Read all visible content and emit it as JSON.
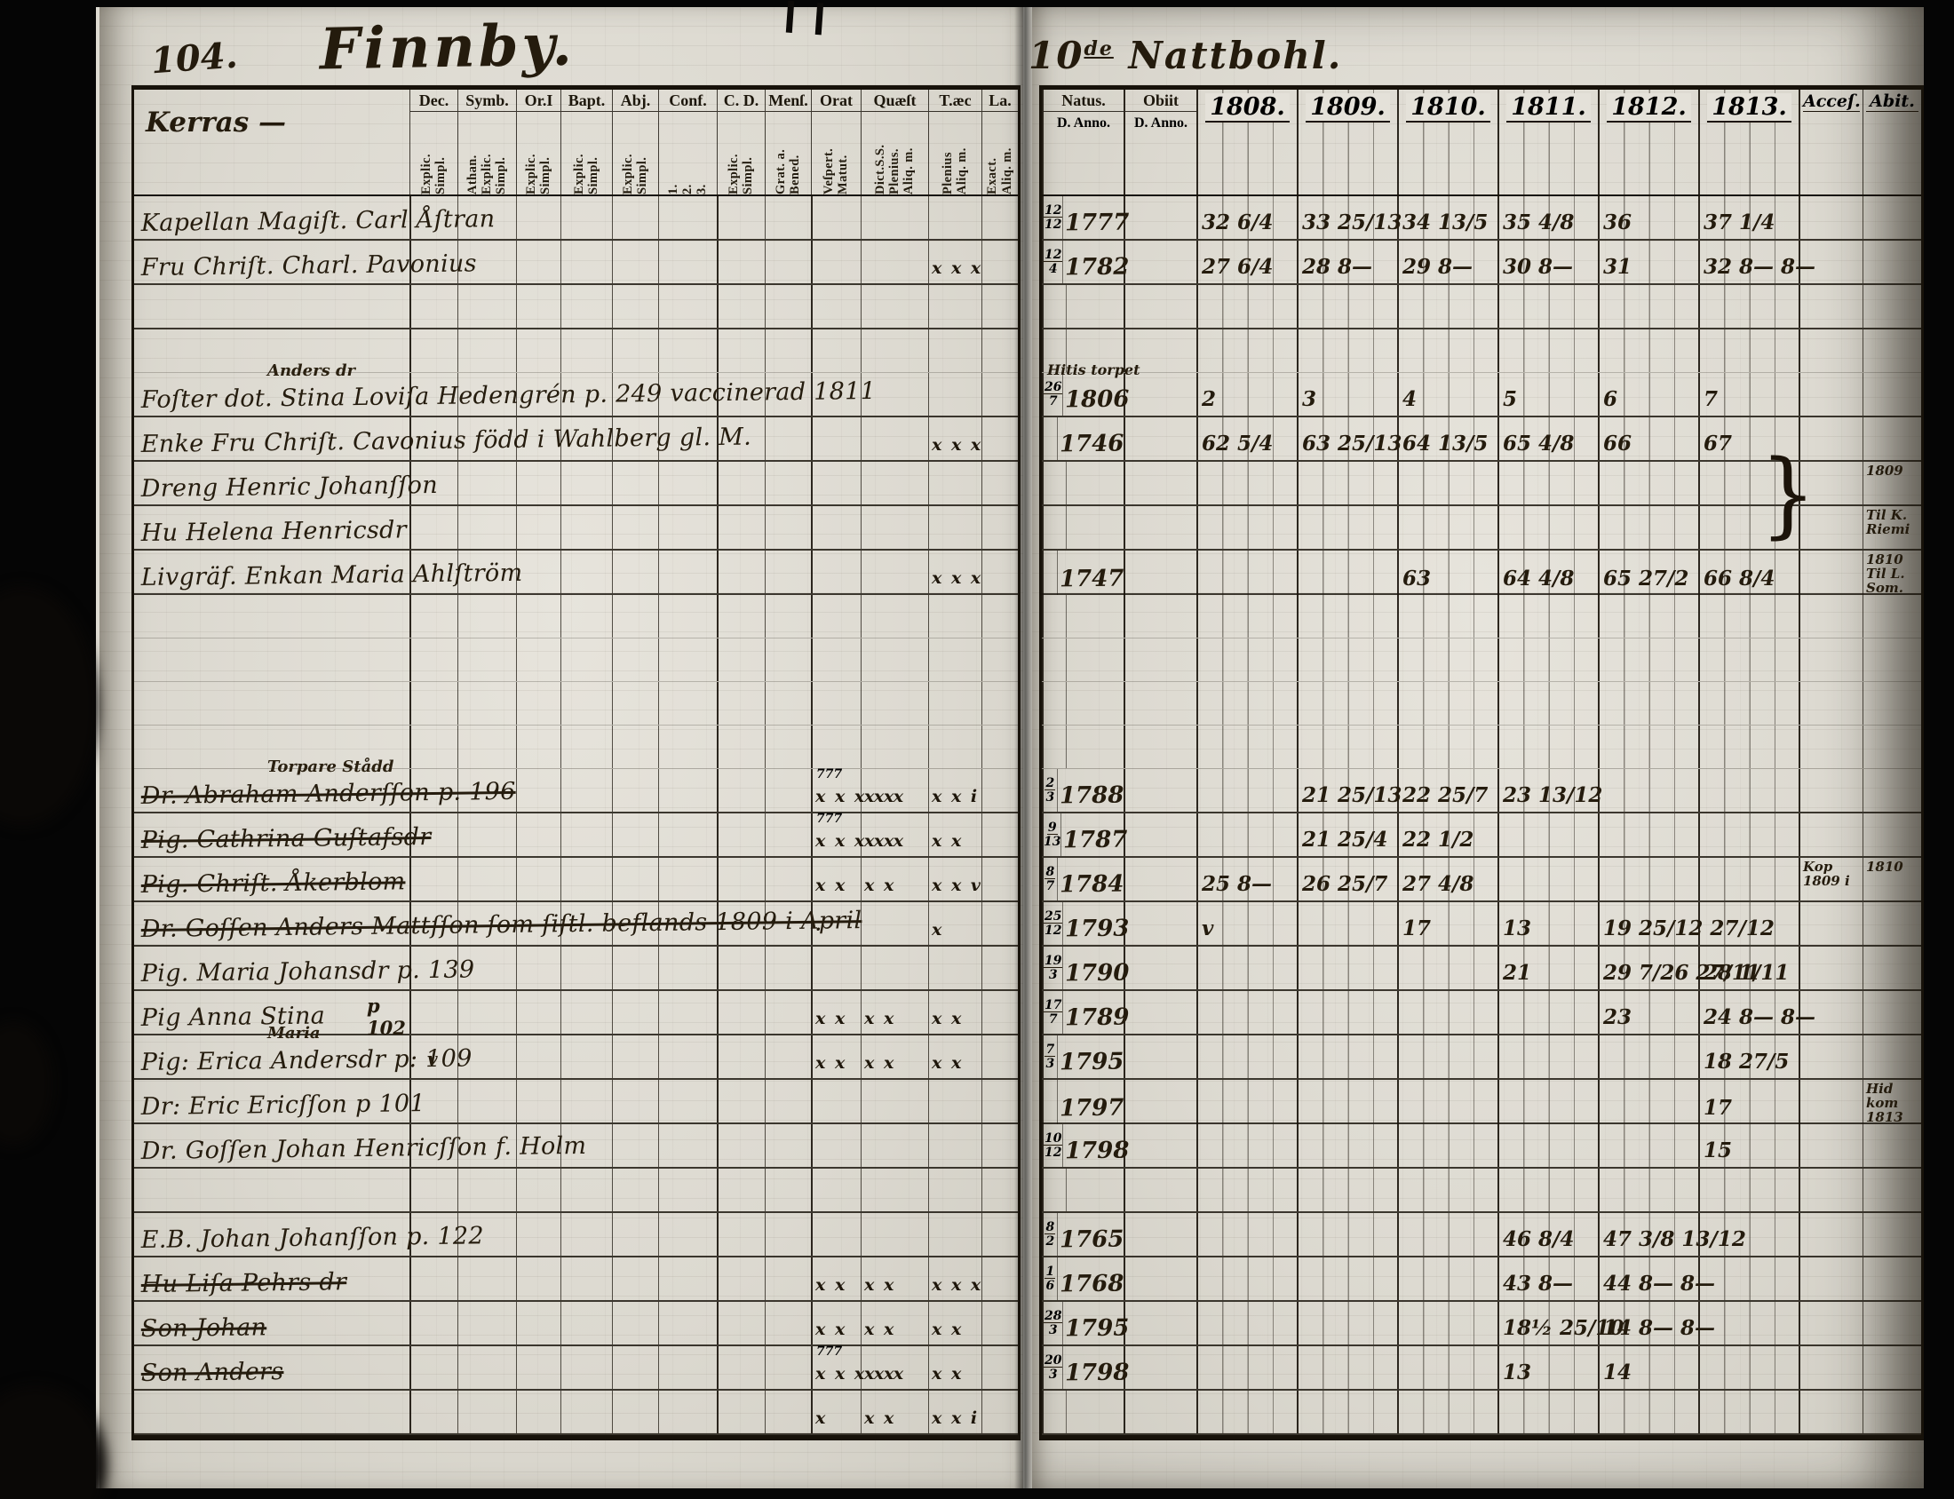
{
  "colors": {
    "ink": "#241b0d",
    "paper": "#dedbd2",
    "line": "#17120a"
  },
  "left_page": {
    "page_number": "104.",
    "title": "Finnby.",
    "section_label": "Kerras —",
    "columns": [
      {
        "label": "Dec.",
        "sub": [
          "Explic.",
          "Simpl."
        ]
      },
      {
        "label": "Symb.",
        "sub": [
          "Athan.",
          "Explic.",
          "Simpl."
        ]
      },
      {
        "label": "Or.I",
        "sub": [
          "Explic.",
          "Simpl."
        ]
      },
      {
        "label": "Bapt.",
        "sub": [
          "Explic.",
          "Simpl."
        ]
      },
      {
        "label": "Abj.",
        "sub": [
          "Explic.",
          "Simpl."
        ]
      },
      {
        "label": "Conf.",
        "sub": [
          "1.",
          "2.",
          "3."
        ]
      },
      {
        "label": "C. D.",
        "sub": [
          "Explic.",
          "Simpl."
        ]
      },
      {
        "label": "Menſ.",
        "sub": [
          "Grat. a.",
          "Bened."
        ]
      },
      {
        "label": "Orat",
        "sub": [
          "Veſpert.",
          "Matut."
        ]
      },
      {
        "label": "Quæſt",
        "sub": [
          "Dict.S.S.",
          "Plenius.",
          "Aliq. m."
        ]
      },
      {
        "label": "T.æc",
        "sub": [
          "Plenius",
          "Aliq. m."
        ]
      },
      {
        "label": "La.",
        "sub": [
          "Exact.",
          "Aliq. m."
        ]
      }
    ]
  },
  "right_page": {
    "title_prefix": "10",
    "title_sup": "de",
    "title_main": "Nattbohl.",
    "natus_label": "Natus.",
    "natus_sub": "D. Anno.",
    "obiit_label": "Obiit",
    "obiit_sub": "D. Anno.",
    "years": [
      "1808.",
      "1809.",
      "1810.",
      "1811.",
      "1812.",
      "1813."
    ],
    "acces_label": "Acceſ.",
    "abit_label": "Abit."
  },
  "rows": [
    {
      "lt": "Kapellan Magiſt. Carl Åſtran",
      "rd": "12/12",
      "ry": "1777",
      "y08": "32 6/4",
      "y09": "33 25/13",
      "y10": "34 13/5",
      "y11": "35 4/8",
      "y12": "36",
      "y13": "37 1/4"
    },
    {
      "lt": "Fru Chriſt. Charl. Pavonius",
      "m3": "x x x",
      "rd": "12/4",
      "ry": "1782",
      "y08": "27 6/4",
      "y09": "28 8—",
      "y10": "29 8—",
      "y11": "30 8—",
      "y12": "31",
      "y13": "32 8— 8—"
    },
    {},
    {
      "b": 1
    },
    {
      "lt": "Foſter dot. Stina Loviſa Hedengrén p. 249 vaccinerad 1811",
      "lsup": "Anders dr",
      "rd": "26/7",
      "ry": "1806",
      "rsup": "Hitis torpet",
      "y08": "2",
      "y09": "3",
      "y10": "4",
      "y11": "5",
      "y12": "6",
      "y13": "7"
    },
    {
      "lt": "Enke Fru Chriſt. Cavonius född i Wahlberg gl. M.",
      "m3": "x x x",
      "ry": "1746",
      "y08": "62 5/4",
      "y09": "63 25/13",
      "y10": "64 13/5",
      "y11": "65 4/8",
      "y12": "66",
      "y13": "67"
    },
    {
      "lt": "Dreng Henric Johanſſon",
      "abt": "1809",
      "brace": 1
    },
    {
      "lt": "Hu Helena Henricsdr",
      "abt": "Til K. Riemi"
    },
    {
      "lt": "Livgräf. Enkan Maria Ahlſtröm",
      "m3": "x x x",
      "ry": "1747",
      "y10": "63",
      "y11": "64 4/8",
      "y12": "65 27/2",
      "y13": "66 8/4",
      "abt": "1810 Til L. Som."
    },
    {
      "b": 1
    },
    {
      "b": 1
    },
    {
      "b": 1
    },
    {
      "b": 1
    },
    {
      "lt": "Dr. Abraham Anderſſon p. 196",
      "lsup": "Torpare Stådd",
      "struck": 1,
      "msup": "777",
      "m1": "x x x x x",
      "m2": "x x",
      "m3": "x x i",
      "rd": "2/3",
      "ry": "1788",
      "y09": "21 25/13",
      "y10": "22 25/7",
      "y11": "23 13/12"
    },
    {
      "lt": "Pig. Cathrina Guſtafsdr",
      "struck": 1,
      "msup": "777",
      "m1": "x x x x x",
      "m2": "x x",
      "m3": "x x",
      "rd": "9/13",
      "ry": "1787",
      "y09": "21 25/4",
      "y10": "22 1/2"
    },
    {
      "lt": "Pig. Chriſt. Åkerblom",
      "struck": 1,
      "m1": "x x",
      "m2": "x x",
      "m3": "x x v",
      "rd": "8/7",
      "ry": "1784",
      "y08": "25 8—",
      "y09": "26 25/7",
      "y10": "27 4/8",
      "acc": "Kop 1809 i",
      "abt": "1810"
    },
    {
      "lt": "Dr. Goſſen Anders Mattſſon ſom ſiſtl. beflands 1809 i April",
      "struck": 1,
      "m1": "·",
      "m3": "x",
      "rd": "25/12",
      "ry": "1793",
      "y08": "v",
      "y10": "17",
      "y11": "13",
      "y12": "19 25/12 27/12"
    },
    {
      "lt": "Pig. Maria Johansdr p. 139",
      "rd": "19/3",
      "ry": "1790",
      "y11": "21",
      "y12": "29 7/26 27/11",
      "y13": "28 1/11"
    },
    {
      "lt": "Pig Anna Stina",
      "lnote": "p 102",
      "m1": "x x",
      "m2": "x x",
      "m3": "x x",
      "rd": "17/7",
      "ry": "1789",
      "y12": "23",
      "y13": "24 8— 8—"
    },
    {
      "lt": "Pig: Erica Andersdr p: 109",
      "lsup": "Maria",
      "lchk": "v",
      "m1": "x x",
      "m2": "x x",
      "m3": "x x",
      "rd": "7/3",
      "ry": "1795",
      "y13": "18 27/5"
    },
    {
      "lt": "Dr: Eric Ericſſon p 101",
      "ry": "1797",
      "y13": "17",
      "abt": "Hid kom 1813"
    },
    {
      "lt": "Dr. Goſſen Johan Henricſſon f. Holm",
      "rd": "10/12",
      "ry": "1798",
      "y13": "15"
    },
    {},
    {
      "lt": "E.B. Johan Johanſſon p. 122",
      "rd": "8/2",
      "ry": "1765",
      "y11": "46 8/4",
      "y12": "47 3/8 13/12"
    },
    {
      "lt": "Hu Liſa Pehrs dr",
      "struck": 1,
      "m1": "x x",
      "m2": "x x",
      "m3": "x x x",
      "rd": "1/6",
      "ry": "1768",
      "y11": "43 8—",
      "y12": "44 8— 8—"
    },
    {
      "lt": "Son Johan",
      "struck": 1,
      "m1": "x x",
      "m2": "x x",
      "m3": "x x",
      "rd": "28/3",
      "ry": "1795",
      "y11": "18½ 25/10",
      "y12": "14 8— 8—"
    },
    {
      "lt": "Son Anders",
      "struck": 1,
      "msup": "777",
      "m1": "x x x x x",
      "m2": "x x",
      "m3": "x x",
      "rd": "20/3",
      "ry": "1798",
      "y11": "13",
      "y12": "14"
    },
    {
      "m1": "x",
      "m2": "x x",
      "m3": "x x i"
    }
  ]
}
